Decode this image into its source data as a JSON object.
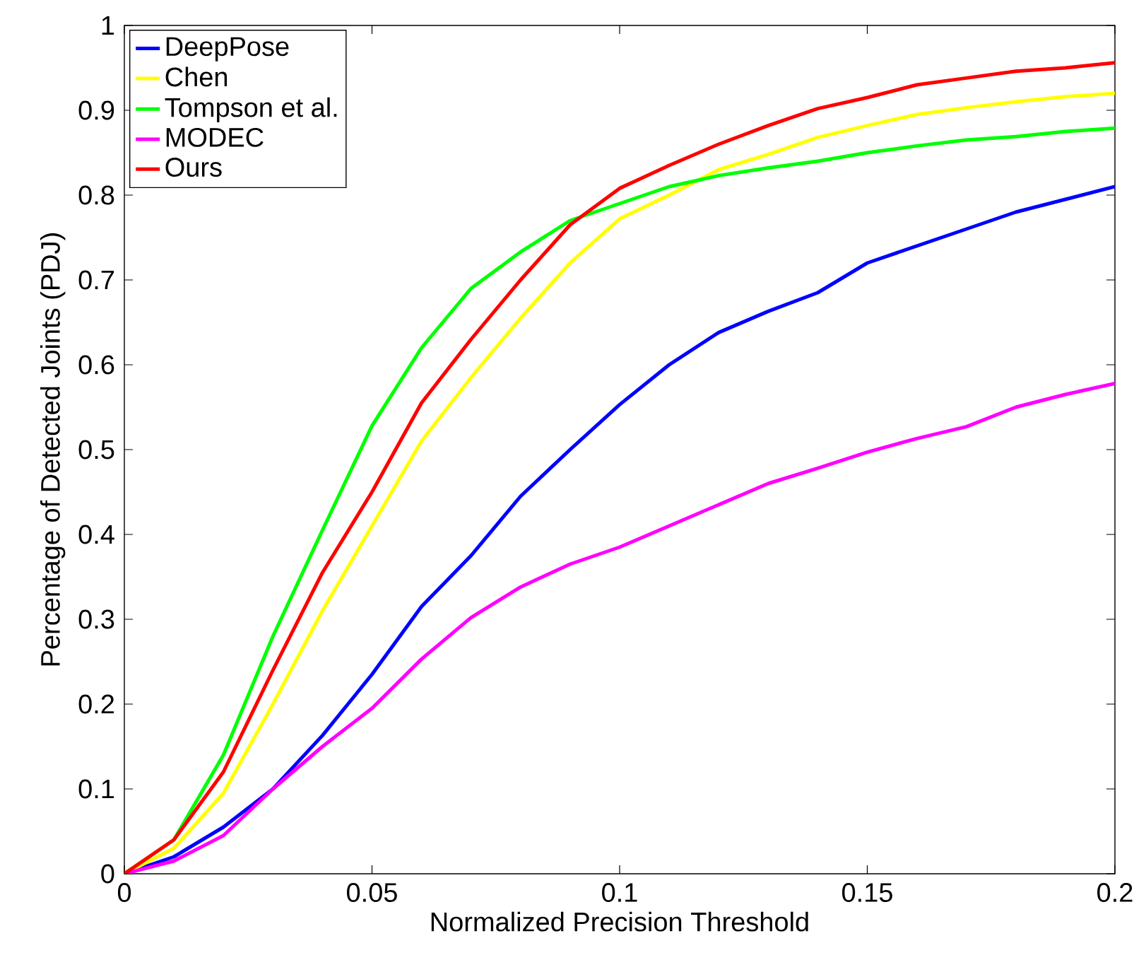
{
  "chart_data": {
    "type": "line",
    "xlabel": "Normalized Precision Threshold",
    "ylabel": "Percentage of Detected Joints (PDJ)",
    "x": [
      0,
      0.01,
      0.02,
      0.03,
      0.04,
      0.05,
      0.06,
      0.07,
      0.08,
      0.09,
      0.1,
      0.11,
      0.12,
      0.13,
      0.14,
      0.15,
      0.16,
      0.17,
      0.18,
      0.19,
      0.2
    ],
    "series": [
      {
        "name": "DeepPose",
        "color": "#0000ff",
        "values": [
          0,
          0.02,
          0.055,
          0.1,
          0.163,
          0.235,
          0.315,
          0.375,
          0.445,
          0.5,
          0.553,
          0.6,
          0.638,
          0.663,
          0.685,
          0.72,
          0.74,
          0.76,
          0.78,
          0.795,
          0.81
        ]
      },
      {
        "name": "Chen",
        "color": "#ffff00",
        "values": [
          0,
          0.03,
          0.095,
          0.2,
          0.31,
          0.41,
          0.51,
          0.585,
          0.655,
          0.72,
          0.772,
          0.8,
          0.83,
          0.848,
          0.868,
          0.882,
          0.895,
          0.903,
          0.91,
          0.916,
          0.92
        ]
      },
      {
        "name": "Tompson et al.",
        "color": "#00ff00",
        "values": [
          0,
          0.04,
          0.14,
          0.28,
          0.405,
          0.528,
          0.62,
          0.69,
          0.733,
          0.77,
          0.79,
          0.81,
          0.823,
          0.832,
          0.84,
          0.85,
          0.858,
          0.865,
          0.869,
          0.875,
          0.879
        ]
      },
      {
        "name": "MODEC",
        "color": "#ff00ff",
        "values": [
          0,
          0.015,
          0.045,
          0.1,
          0.15,
          0.195,
          0.253,
          0.302,
          0.338,
          0.365,
          0.385,
          0.41,
          0.435,
          0.46,
          0.478,
          0.497,
          0.513,
          0.527,
          0.55,
          0.565,
          0.578
        ]
      },
      {
        "name": "Ours",
        "color": "#ff0000",
        "values": [
          0,
          0.04,
          0.12,
          0.24,
          0.355,
          0.45,
          0.555,
          0.63,
          0.7,
          0.765,
          0.808,
          0.835,
          0.86,
          0.882,
          0.902,
          0.915,
          0.93,
          0.938,
          0.946,
          0.95,
          0.956
        ]
      }
    ],
    "xlim": [
      0,
      0.2
    ],
    "ylim": [
      0,
      1
    ],
    "xticks": [
      0,
      0.05,
      0.1,
      0.15,
      0.2
    ],
    "yticks": [
      0,
      0.1,
      0.2,
      0.3,
      0.4,
      0.5,
      0.6,
      0.7,
      0.8,
      0.9,
      1
    ],
    "legend": "top left",
    "grid": false,
    "marker": "none",
    "line_style": "solid"
  }
}
